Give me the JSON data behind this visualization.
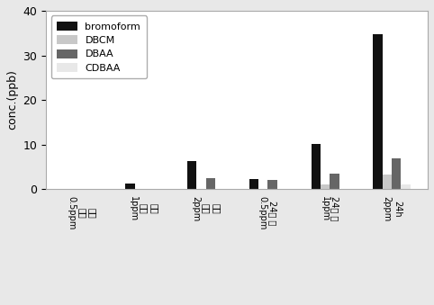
{
  "categories": [
    "강공\n직후\n0.5ppm",
    "강공\n직후\n1ppm",
    "강공\n직후\n2ppm",
    "24시\n간\n0.5ppm",
    "24시\n간\n1ppm",
    "24h\n2ppm"
  ],
  "series": {
    "bromoform": [
      0,
      1.2,
      6.3,
      2.2,
      10.2,
      34.8
    ],
    "DBCM": [
      0,
      0,
      0,
      0,
      1.0,
      3.2
    ],
    "DBAA": [
      0,
      0,
      2.5,
      2.0,
      3.4,
      6.8
    ],
    "CDBAA": [
      0,
      0,
      0,
      0,
      0,
      1.1
    ]
  },
  "colors": {
    "bromoform": "#111111",
    "DBCM": "#c8c8c8",
    "DBAA": "#666666",
    "CDBAA": "#e8e8e8"
  },
  "ylabel": "conc.(ppb)",
  "ylim": [
    0,
    40
  ],
  "yticks": [
    0,
    10,
    20,
    30,
    40
  ],
  "bar_width": 0.15,
  "legend_order": [
    "bromoform",
    "DBCM",
    "DBAA",
    "CDBAA"
  ],
  "background_color": "#e8e8e8",
  "plot_background": "#ffffff"
}
